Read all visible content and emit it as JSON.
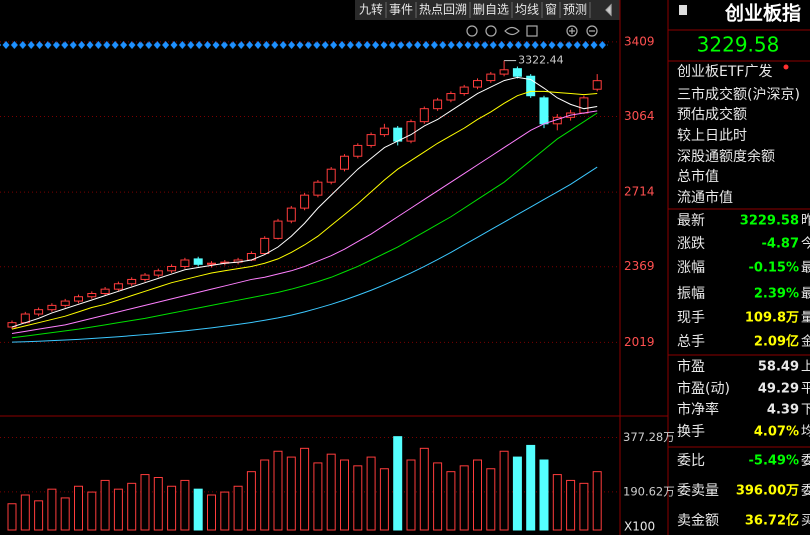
{
  "toolbar": [
    "九转",
    "事件",
    "热点回溯",
    "删自选",
    "均线",
    "窗",
    "预测"
  ],
  "chart_data": {
    "type": "candlestick",
    "max_label": "3322.44",
    "up_color": "#ff3c3c",
    "down_color": "#54ffff",
    "ylim": [
      1706,
      3464
    ],
    "yticks": [
      2019,
      2369,
      2714,
      3064,
      3409
    ],
    "open": [
      2090,
      2110,
      2150,
      2170,
      2190,
      2210,
      2230,
      2245,
      2265,
      2290,
      2310,
      2330,
      2350,
      2370,
      2405,
      2380,
      2385,
      2390,
      2400,
      2430,
      2500,
      2580,
      2640,
      2700,
      2760,
      2820,
      2880,
      2930,
      2980,
      3010,
      2950,
      3040,
      3100,
      3140,
      3170,
      3200,
      3230,
      3260,
      3285,
      3250,
      3150,
      3030,
      3060,
      3080,
      3190
    ],
    "high": [
      2120,
      2160,
      2180,
      2200,
      2220,
      2240,
      2255,
      2275,
      2300,
      2320,
      2340,
      2360,
      2380,
      2410,
      2415,
      2395,
      2400,
      2410,
      2440,
      2510,
      2590,
      2650,
      2710,
      2770,
      2830,
      2890,
      2940,
      2990,
      3030,
      3020,
      3050,
      3110,
      3150,
      3180,
      3210,
      3240,
      3270,
      3322.44,
      3295,
      3260,
      3160,
      3075,
      3095,
      3160,
      3260
    ],
    "low": [
      2080,
      2105,
      2140,
      2160,
      2180,
      2200,
      2220,
      2235,
      2255,
      2280,
      2300,
      2320,
      2340,
      2360,
      2370,
      2365,
      2375,
      2380,
      2395,
      2425,
      2495,
      2570,
      2630,
      2690,
      2750,
      2810,
      2870,
      2920,
      2970,
      2930,
      2940,
      3030,
      3090,
      3130,
      3160,
      3190,
      3220,
      3250,
      3240,
      3150,
      3010,
      3000,
      3045,
      3075,
      3180
    ],
    "close": [
      2110,
      2150,
      2170,
      2190,
      2210,
      2230,
      2245,
      2265,
      2290,
      2310,
      2330,
      2350,
      2370,
      2400,
      2380,
      2385,
      2390,
      2400,
      2430,
      2500,
      2580,
      2640,
      2700,
      2760,
      2820,
      2880,
      2930,
      2980,
      3010,
      2950,
      3040,
      3100,
      3140,
      3170,
      3200,
      3230,
      3260,
      3280,
      3250,
      3160,
      3030,
      3060,
      3080,
      3150,
      3229.58
    ],
    "lines": [
      {
        "color": "#ffffff",
        "values": [
          2090,
          2110,
          2130,
          2155,
          2175,
          2195,
          2215,
          2235,
          2255,
          2275,
          2295,
          2315,
          2335,
          2355,
          2365,
          2375,
          2385,
          2390,
          2400,
          2425,
          2460,
          2510,
          2570,
          2640,
          2700,
          2760,
          2820,
          2870,
          2920,
          2950,
          2980,
          3020,
          3050,
          3090,
          3130,
          3170,
          3200,
          3230,
          3245,
          3235,
          3195,
          3150,
          3120,
          3100,
          3110
        ]
      },
      {
        "color": "#ffff00",
        "values": [
          2080,
          2095,
          2110,
          2125,
          2140,
          2160,
          2180,
          2195,
          2215,
          2235,
          2255,
          2275,
          2295,
          2310,
          2325,
          2340,
          2350,
          2360,
          2370,
          2385,
          2405,
          2435,
          2470,
          2510,
          2560,
          2610,
          2660,
          2715,
          2770,
          2820,
          2860,
          2900,
          2940,
          2975,
          3010,
          3050,
          3085,
          3125,
          3160,
          3180,
          3180,
          3175,
          3170,
          3165,
          3170
        ]
      },
      {
        "color": "#ff80ff",
        "values": [
          2060,
          2070,
          2080,
          2090,
          2100,
          2115,
          2130,
          2145,
          2160,
          2175,
          2190,
          2205,
          2220,
          2235,
          2250,
          2265,
          2280,
          2295,
          2310,
          2320,
          2335,
          2350,
          2370,
          2395,
          2420,
          2450,
          2485,
          2520,
          2560,
          2600,
          2640,
          2680,
          2720,
          2760,
          2800,
          2840,
          2880,
          2920,
          2960,
          3000,
          3030,
          3050,
          3070,
          3080,
          3090
        ]
      },
      {
        "color": "#00e000",
        "values": [
          2040,
          2048,
          2056,
          2064,
          2072,
          2080,
          2090,
          2100,
          2110,
          2120,
          2130,
          2142,
          2154,
          2166,
          2178,
          2190,
          2202,
          2214,
          2226,
          2238,
          2250,
          2265,
          2282,
          2300,
          2320,
          2345,
          2370,
          2400,
          2430,
          2460,
          2495,
          2530,
          2565,
          2600,
          2640,
          2680,
          2720,
          2760,
          2810,
          2860,
          2910,
          2960,
          3000,
          3040,
          3080
        ]
      },
      {
        "color": "#3cc8ff",
        "values": [
          2020,
          2022,
          2024,
          2027,
          2030,
          2033,
          2037,
          2041,
          2045,
          2050,
          2055,
          2060,
          2066,
          2072,
          2079,
          2086,
          2094,
          2102,
          2111,
          2121,
          2132,
          2145,
          2160,
          2177,
          2195,
          2215,
          2237,
          2260,
          2285,
          2312,
          2340,
          2370,
          2402,
          2435,
          2470,
          2505,
          2540,
          2575,
          2610,
          2645,
          2680,
          2715,
          2750,
          2790,
          2830
        ]
      }
    ],
    "volume": {
      "ylim": [
        60,
        420
      ],
      "unit_label": "X100",
      "yticks": [
        {
          "value": 377.28,
          "label": "377.28万"
        },
        {
          "value": 190.62,
          "label": "190.62万"
        }
      ],
      "values": [
        150,
        180,
        160,
        200,
        170,
        210,
        190,
        230,
        200,
        220,
        250,
        240,
        210,
        230,
        200,
        180,
        190,
        210,
        260,
        300,
        330,
        310,
        340,
        290,
        320,
        300,
        280,
        310,
        270,
        380,
        300,
        340,
        290,
        260,
        280,
        300,
        270,
        330,
        310,
        350,
        300,
        250,
        230,
        220,
        260
      ]
    }
  },
  "quote": {
    "title": "创业板指",
    "price": "3229.58",
    "info": [
      "创业板ETF广发",
      "三市成交额(沪深京)",
      "预估成交额",
      "较上日此时",
      "深股通额度余额",
      "总市值",
      "流通市值"
    ],
    "rows": [
      {
        "label": "最新",
        "value": "3229.58",
        "tail": "昨",
        "color": "#00ff00"
      },
      {
        "label": "涨跌",
        "value": "-4.87",
        "tail": "今",
        "color": "#00ff00"
      },
      {
        "label": "涨幅",
        "value": "-0.15%",
        "tail": "最",
        "color": "#00ff00"
      },
      {
        "label": "振幅",
        "value": "2.39%",
        "tail": "最",
        "color": "#00ff00"
      },
      {
        "label": "现手",
        "value": "109.8万",
        "tail": "量",
        "color": "#ffff00"
      },
      {
        "label": "总手",
        "value": "2.09亿",
        "tail": "金",
        "color": "#ffff00"
      },
      {
        "label": "市盈",
        "value": "58.49",
        "tail": "上",
        "color": "#e8e8e8"
      },
      {
        "label": "市盈(动)",
        "value": "49.29",
        "tail": "平",
        "color": "#e8e8e8"
      },
      {
        "label": "市净率",
        "value": "4.39",
        "tail": "下",
        "color": "#e8e8e8"
      },
      {
        "label": "换手",
        "value": "4.07%",
        "tail": "均",
        "color": "#ffff00"
      },
      {
        "label": "委比",
        "value": "-5.49%",
        "tail": "委",
        "color": "#00ff00"
      },
      {
        "label": "委卖量",
        "value": "396.00万",
        "tail": "委",
        "color": "#ffff00"
      },
      {
        "label": "卖金额",
        "value": "36.72亿",
        "tail": "买",
        "color": "#ffff00"
      }
    ]
  }
}
